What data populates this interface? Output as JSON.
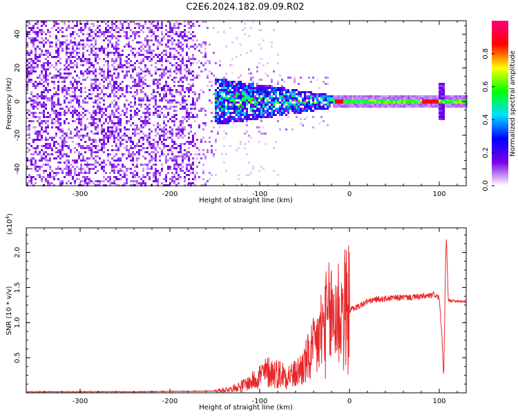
{
  "title": "C2E6.2024.182.09.09.R02",
  "chart_data": [
    {
      "type": "heatmap",
      "xlabel": "Height of straight line (km)",
      "ylabel": "Frequency (Hz)",
      "xlim": [
        -360,
        130
      ],
      "ylim": [
        -50,
        48
      ],
      "xticks": [
        -300,
        -200,
        -100,
        0,
        100
      ],
      "xtick_labels": [
        "-300",
        "-200",
        "-100",
        "0",
        "100"
      ],
      "yticks": [
        -40,
        -20,
        0,
        20,
        40
      ],
      "ytick_labels": [
        "-40",
        "-20",
        "0",
        "20",
        "40"
      ],
      "colorbar": {
        "label": "Normalized spectral amplitude",
        "range": [
          0,
          1
        ],
        "ticks": [
          0.0,
          0.2,
          0.4,
          0.6,
          0.8
        ],
        "tick_labels": [
          "0.0",
          "0.2",
          "0.4",
          "0.6",
          "0.8"
        ],
        "colormap": [
          "#ffffff",
          "#7a00e6",
          "#0000ff",
          "#00e0ff",
          "#00ff00",
          "#ffff00",
          "#ff0000",
          "#ff0080"
        ]
      },
      "structure": [
        {
          "x_range": [
            -360,
            -175
          ],
          "freq_halfwidth": 50,
          "amplitude": 0.08,
          "description_level": "broadband noise"
        },
        {
          "x_range": [
            -175,
            -150
          ],
          "freq_halfwidth": 50,
          "amplitude": 0.04
        },
        {
          "x_range": [
            -150,
            -20
          ],
          "freq_halfwidth_start": 14,
          "freq_halfwidth_end": 4,
          "amplitude": 0.4
        },
        {
          "x_range": [
            -20,
            130
          ],
          "freq_halfwidth": 2,
          "amplitude": 0.6
        },
        {
          "x": 100,
          "spike_freq_range": [
            -10,
            12
          ],
          "amplitude": 0.3
        }
      ]
    },
    {
      "type": "line",
      "xlabel": "Height of straight line (km)",
      "ylabel": "SNR (10 * v/v)",
      "y_multiplier_label": "(x10",
      "y_multiplier_exp": "4",
      "y_multiplier_close": ")",
      "xlim": [
        -360,
        130
      ],
      "ylim": [
        0,
        23500
      ],
      "xticks": [
        -300,
        -200,
        -100,
        0,
        100
      ],
      "xtick_labels": [
        "-300",
        "-200",
        "-100",
        "0",
        "100"
      ],
      "yticks": [
        5000,
        10000,
        15000,
        20000
      ],
      "ytick_labels": [
        "0.5",
        "1.0",
        "1.5",
        "2.0"
      ],
      "color": "#e8282a",
      "series": [
        {
          "x": [
            -360,
            -300,
            -250,
            -200,
            -150,
            -130,
            -110,
            -100,
            -90,
            -80,
            -70,
            -60,
            -50,
            -40,
            -30,
            -20,
            -10,
            0,
            10,
            20,
            30,
            40,
            50,
            60,
            70,
            80,
            90,
            95,
            100,
            103,
            105,
            107,
            108,
            110,
            115,
            120,
            130
          ],
          "values": [
            150,
            150,
            150,
            200,
            250,
            600,
            1500,
            2500,
            3000,
            2800,
            2500,
            2600,
            4000,
            6000,
            9000,
            11000,
            11500,
            11800,
            12300,
            13000,
            13300,
            13400,
            13500,
            13600,
            13600,
            13700,
            13800,
            14000,
            13500,
            8000,
            2000,
            19000,
            22000,
            13200,
            13100,
            13100,
            13000
          ]
        }
      ]
    }
  ]
}
